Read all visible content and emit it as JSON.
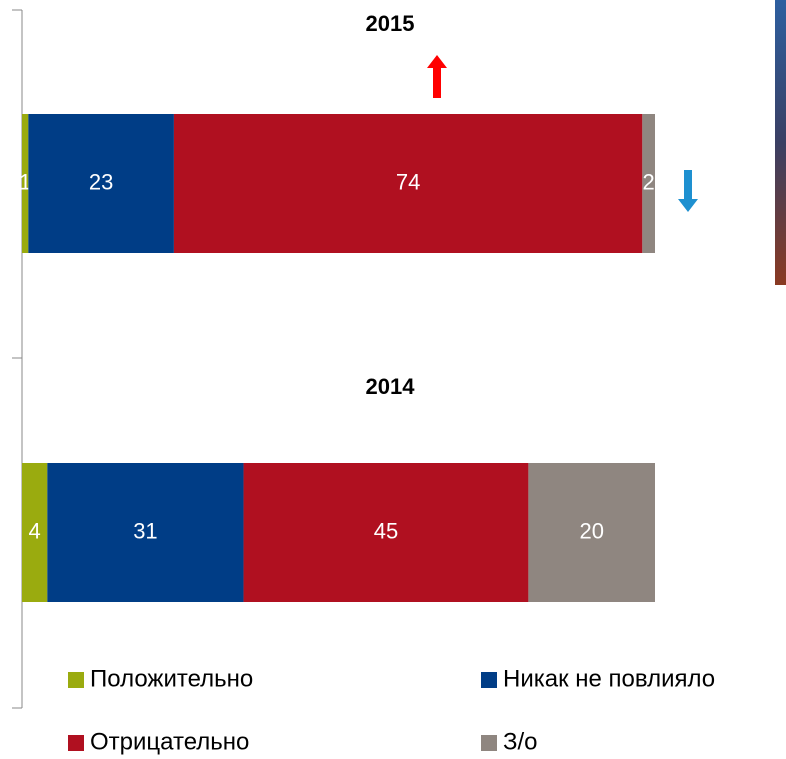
{
  "chart_data": {
    "type": "bar",
    "orientation": "horizontal",
    "stacked": true,
    "categories": [
      "2015",
      "2014"
    ],
    "series": [
      {
        "name": "Положительно",
        "color": "#9aab0f",
        "values": [
          1,
          4
        ]
      },
      {
        "name": "Никак не повлияло",
        "color": "#003d86",
        "values": [
          23,
          31
        ]
      },
      {
        "name": "Отрицательно",
        "color": "#b01020",
        "values": [
          74,
          45
        ]
      },
      {
        "name": "З/о",
        "color": "#8f8680",
        "values": [
          2,
          20
        ]
      }
    ],
    "xlim": [
      0,
      100
    ]
  }
}
